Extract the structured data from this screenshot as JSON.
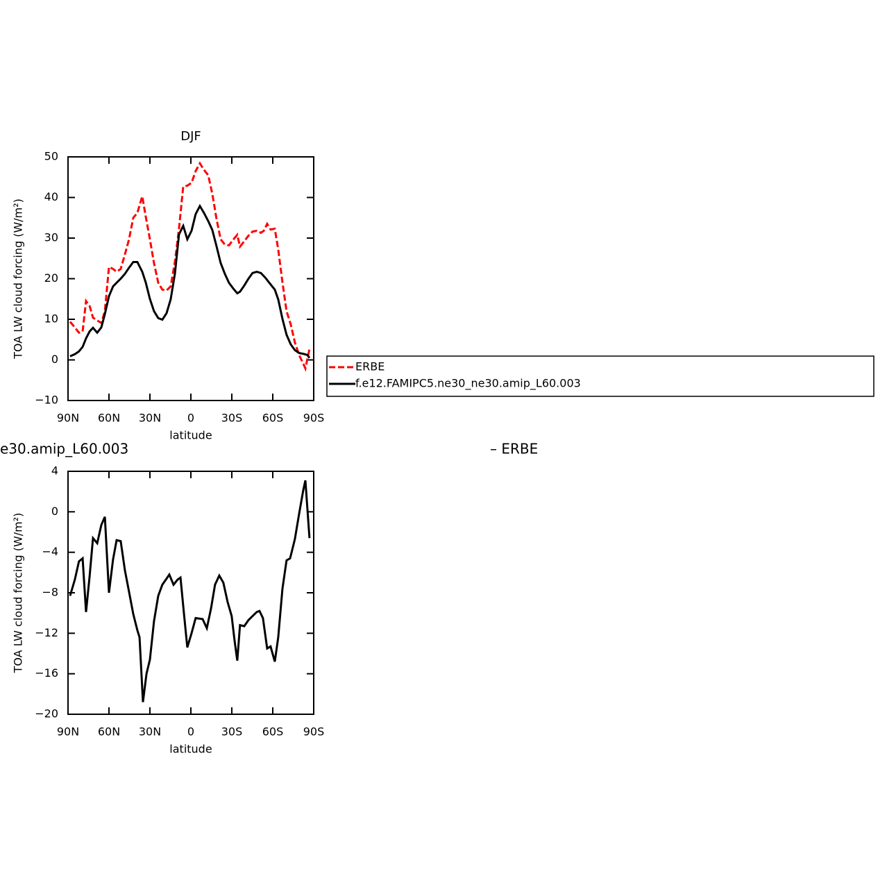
{
  "chart_data": [
    {
      "type": "line",
      "title": "DJF",
      "xlabel": "latitude",
      "ylabel": "TOA LW cloud forcing (W/m²)",
      "xlim": [
        90,
        -90
      ],
      "xticks": [
        {
          "value": 90,
          "label": "90N"
        },
        {
          "value": 60,
          "label": "60N"
        },
        {
          "value": 30,
          "label": "30N"
        },
        0,
        {
          "value": -30,
          "label": "30S"
        },
        {
          "value": -60,
          "label": "60S"
        },
        {
          "value": -90,
          "label": "90S"
        }
      ],
      "ylim": [
        -10,
        50
      ],
      "yticks": [
        {
          "value": -10,
          "label": "−10"
        },
        0,
        10,
        20,
        30,
        40,
        50
      ],
      "series": [
        {
          "name": "ERBE",
          "color": "#ff0000",
          "dash": true,
          "x": [
            88.5,
            85,
            82,
            79.3,
            76.8,
            74.2,
            71.7,
            68.6,
            65.6,
            63,
            60,
            57,
            54.4,
            51.4,
            48.3,
            45.3,
            42.2,
            39.2,
            35.6,
            33,
            30,
            27,
            23.9,
            20.9,
            17.8,
            14.8,
            11.7,
            8.7,
            5.6,
            2.6,
            -0.5,
            -3.5,
            -6.6,
            -9.6,
            -12.7,
            -15.7,
            -18.8,
            -21.8,
            -24.9,
            -27.9,
            -31,
            -34,
            -36,
            -39.1,
            -42.2,
            -45.2,
            -48.3,
            -51.3,
            -53.4,
            -55.9,
            -58.4,
            -61.5,
            -64,
            -67.1,
            -70.1,
            -73.2,
            -76.2,
            -79.3,
            -82.3,
            -83.9,
            -86.9
          ],
          "values": [
            9.4,
            8.0,
            6.7,
            7.0,
            14.5,
            13.3,
            10.4,
            9.7,
            9.1,
            12,
            22.9,
            22.4,
            21.7,
            22.4,
            26,
            29.7,
            35,
            36.2,
            40.3,
            35.2,
            29.7,
            23.8,
            19,
            17.3,
            17.1,
            18.1,
            24.1,
            32.3,
            42.7,
            42.9,
            43.6,
            46.5,
            48.4,
            46.8,
            45.5,
            40.9,
            34.7,
            29.7,
            28.4,
            28.2,
            29.6,
            30.8,
            27.9,
            29.2,
            30.6,
            31.6,
            31.8,
            31.3,
            31.8,
            33.5,
            32.1,
            32.3,
            27.2,
            19.1,
            12,
            8.7,
            4.3,
            1.2,
            -0.9,
            -2.1,
            2.7
          ]
        },
        {
          "name": "f.e12.FAMIPC5.ne30_ne30.amip_L60.003",
          "color": "#000000",
          "dash": false,
          "x": [
            88.5,
            85,
            82,
            79.3,
            76.8,
            74.2,
            71.7,
            68.6,
            65.6,
            63,
            60,
            57,
            54.4,
            51.4,
            48.3,
            45.3,
            42.2,
            39.2,
            35.6,
            33,
            30,
            27,
            23.9,
            20.9,
            17.8,
            14.8,
            11.7,
            8.7,
            5.6,
            2.6,
            -0.5,
            -3.5,
            -6.6,
            -9.6,
            -12.7,
            -15.7,
            -18.8,
            -21.8,
            -24.9,
            -27.9,
            -31,
            -34,
            -36,
            -39.1,
            -42.2,
            -45.2,
            -48.3,
            -51.3,
            -54.4,
            -58.4,
            -61.5,
            -64,
            -67.1,
            -70.1,
            -73.2,
            -76.2,
            -79.3,
            -82.3,
            -85.4,
            -86.9
          ],
          "values": [
            0.9,
            1.4,
            2.1,
            3.2,
            5.3,
            7.0,
            7.9,
            6.7,
            8.0,
            11.3,
            15.7,
            18.1,
            19,
            20,
            21.2,
            22.7,
            24.1,
            24.1,
            21.7,
            19,
            15,
            12,
            10.3,
            9.9,
            11.5,
            14.9,
            21.2,
            30.9,
            33,
            29.7,
            31.8,
            35.9,
            37.9,
            36.2,
            34.2,
            32,
            28,
            23.9,
            21.2,
            19,
            17.6,
            16.4,
            16.8,
            18.3,
            20,
            21.4,
            21.7,
            21.4,
            20.3,
            18.6,
            17.3,
            14.9,
            10.1,
            6.2,
            3.8,
            2.4,
            1.7,
            1.5,
            1.2,
            0.5
          ]
        }
      ]
    },
    {
      "type": "line",
      "title": [
        "e30.amip_L60.003",
        "– ERBE"
      ],
      "xlabel": "latitude",
      "ylabel": "TOA LW cloud forcing (W/m²)",
      "xlim": [
        90,
        -90
      ],
      "xticks": [
        {
          "value": 90,
          "label": "90N"
        },
        {
          "value": 60,
          "label": "60N"
        },
        {
          "value": 30,
          "label": "30N"
        },
        0,
        {
          "value": -30,
          "label": "30S"
        },
        {
          "value": -60,
          "label": "60S"
        },
        {
          "value": -90,
          "label": "90S"
        }
      ],
      "ylim": [
        -20,
        4
      ],
      "yticks": [
        {
          "value": -20,
          "label": "−20"
        },
        {
          "value": -16,
          "label": "−16"
        },
        {
          "value": -12,
          "label": "−12"
        },
        {
          "value": -8,
          "label": "−8"
        },
        {
          "value": -4,
          "label": "−4"
        },
        0,
        4
      ],
      "series": [
        {
          "color": "#000000",
          "dash": false,
          "x": [
            88.5,
            85,
            82,
            79.3,
            76.8,
            74.2,
            71.7,
            68.6,
            65.6,
            63,
            60,
            57,
            54.4,
            51.4,
            48.3,
            45.3,
            42.2,
            39.2,
            37.6,
            35.1,
            32.5,
            30,
            27,
            23.9,
            20.9,
            17.8,
            15.8,
            12.7,
            9.7,
            7.6,
            5.1,
            2.6,
            -0.5,
            -3.5,
            -8.6,
            -11.7,
            -14.7,
            -17.7,
            -20.8,
            -23.8,
            -26.9,
            -29.9,
            -32,
            -34,
            -36,
            -39.1,
            -42.2,
            -45.2,
            -48.3,
            -50.3,
            -52.8,
            -55.9,
            -58.4,
            -61.5,
            -64,
            -67.1,
            -70.1,
            -72.7,
            -76.2,
            -79.3,
            -82.3,
            -83.9,
            -86.9
          ],
          "values": [
            -8.3,
            -6.7,
            -4.9,
            -4.6,
            -9.9,
            -6.4,
            -2.6,
            -3.1,
            -1.3,
            -0.5,
            -8.0,
            -4.7,
            -2.8,
            -2.9,
            -5.8,
            -7.9,
            -10.1,
            -11.7,
            -12.4,
            -18.8,
            -16.0,
            -14.6,
            -10.8,
            -8.3,
            -7.2,
            -6.6,
            -6.2,
            -7.2,
            -6.7,
            -6.5,
            -10.0,
            -13.4,
            -12.0,
            -10.5,
            -10.6,
            -11.5,
            -9.6,
            -7.2,
            -6.3,
            -7.0,
            -8.9,
            -10.3,
            -12.7,
            -14.7,
            -11.2,
            -11.3,
            -10.7,
            -10.3,
            -9.9,
            -9.8,
            -10.5,
            -13.5,
            -13.3,
            -14.8,
            -12.4,
            -7.6,
            -4.8,
            -4.6,
            -2.7,
            -0.2,
            2.1,
            3.1,
            -2.6
          ]
        }
      ]
    }
  ]
}
